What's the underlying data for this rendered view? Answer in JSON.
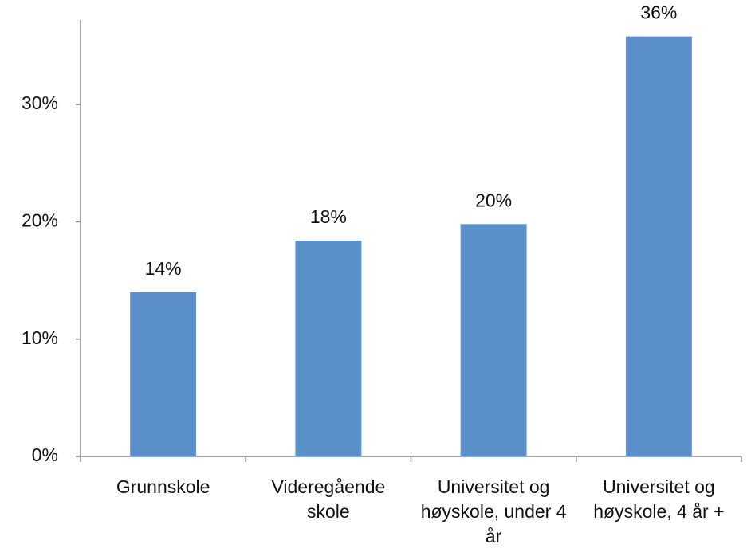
{
  "chart_data": {
    "type": "bar",
    "categories": [
      "Grunnskole",
      "Videregående skole",
      "Universitet og høyskole, under 4 år",
      "Universitet og høyskole, 4 år +"
    ],
    "values": [
      14.0,
      18.4,
      19.8,
      35.8
    ],
    "value_labels": [
      "14%",
      "18%",
      "20%",
      "36%"
    ],
    "color": "#5b8fc9",
    "ylim": [
      0,
      37.2
    ],
    "yticks": [
      {
        "value": 0,
        "label": "0%"
      },
      {
        "value": 10,
        "label": "10%"
      },
      {
        "value": 20,
        "label": "20%"
      },
      {
        "value": 30,
        "label": "30%"
      }
    ],
    "grid": false
  }
}
